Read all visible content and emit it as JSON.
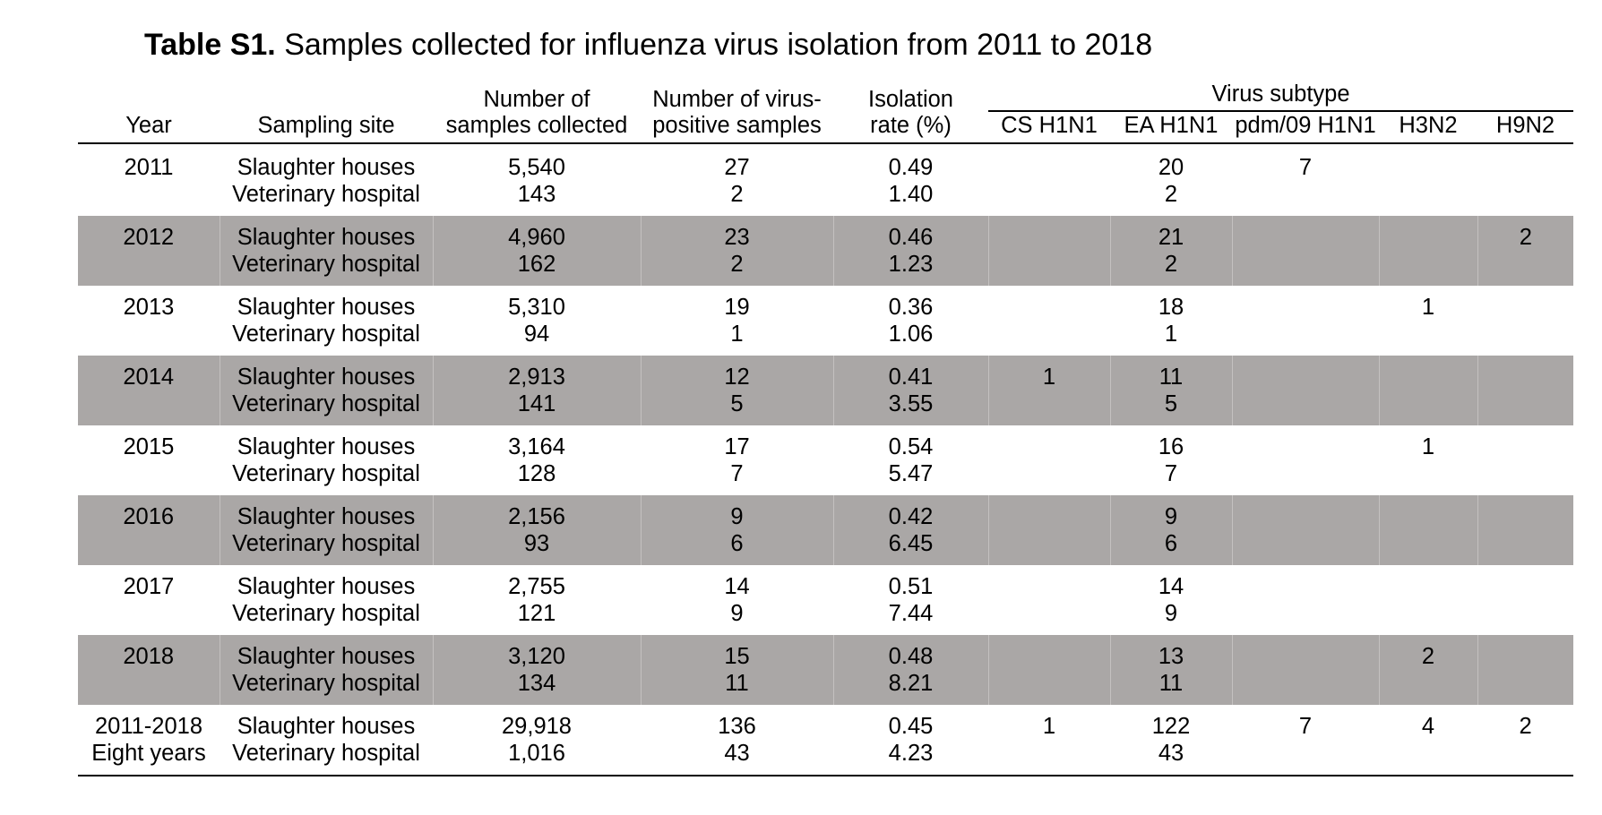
{
  "title": {
    "label": "Table S1.",
    "text": "Samples collected for influenza virus isolation from 2011 to 2018"
  },
  "headers": {
    "year": "Year",
    "site": "Sampling site",
    "num_line1": "Number of",
    "num_line2": "samples collected",
    "pos_line1": "Number of virus-",
    "pos_line2": "positive samples",
    "rate_line1": "Isolation",
    "rate_line2": "rate (%)",
    "subtype_group": "Virus subtype",
    "cs": "CS H1N1",
    "ea": "EA H1N1",
    "pdm": "pdm/09 H1N1",
    "h3": "H3N2",
    "h9": "H9N2"
  },
  "rows": [
    {
      "year": "2011",
      "year2": "",
      "sites": [
        "Slaughter houses",
        "Veterinary hospital"
      ],
      "num": [
        "5,540",
        "143"
      ],
      "pos": [
        "27",
        "2"
      ],
      "rate": [
        "0.49",
        "1.40"
      ],
      "cs": [
        "",
        ""
      ],
      "ea": [
        "20",
        "2"
      ],
      "pdm": [
        "7",
        ""
      ],
      "h3": [
        "",
        ""
      ],
      "h9": [
        "",
        ""
      ]
    },
    {
      "year": "2012",
      "year2": "",
      "sites": [
        "Slaughter houses",
        "Veterinary hospital"
      ],
      "num": [
        "4,960",
        "162"
      ],
      "pos": [
        "23",
        "2"
      ],
      "rate": [
        "0.46",
        "1.23"
      ],
      "cs": [
        "",
        ""
      ],
      "ea": [
        "21",
        "2"
      ],
      "pdm": [
        "",
        ""
      ],
      "h3": [
        "",
        ""
      ],
      "h9": [
        "2",
        ""
      ]
    },
    {
      "year": "2013",
      "year2": "",
      "sites": [
        "Slaughter houses",
        "Veterinary hospital"
      ],
      "num": [
        "5,310",
        "94"
      ],
      "pos": [
        "19",
        "1"
      ],
      "rate": [
        "0.36",
        "1.06"
      ],
      "cs": [
        "",
        ""
      ],
      "ea": [
        "18",
        "1"
      ],
      "pdm": [
        "",
        ""
      ],
      "h3": [
        "1",
        ""
      ],
      "h9": [
        "",
        ""
      ]
    },
    {
      "year": "2014",
      "year2": "",
      "sites": [
        "Slaughter houses",
        "Veterinary hospital"
      ],
      "num": [
        "2,913",
        "141"
      ],
      "pos": [
        "12",
        "5"
      ],
      "rate": [
        "0.41",
        "3.55"
      ],
      "cs": [
        "1",
        ""
      ],
      "ea": [
        "11",
        "5"
      ],
      "pdm": [
        "",
        ""
      ],
      "h3": [
        "",
        ""
      ],
      "h9": [
        "",
        ""
      ]
    },
    {
      "year": "2015",
      "year2": "",
      "sites": [
        "Slaughter houses",
        "Veterinary hospital"
      ],
      "num": [
        "3,164",
        "128"
      ],
      "pos": [
        "17",
        "7"
      ],
      "rate": [
        "0.54",
        "5.47"
      ],
      "cs": [
        "",
        ""
      ],
      "ea": [
        "16",
        "7"
      ],
      "pdm": [
        "",
        ""
      ],
      "h3": [
        "1",
        ""
      ],
      "h9": [
        "",
        ""
      ]
    },
    {
      "year": "2016",
      "year2": "",
      "sites": [
        "Slaughter houses",
        "Veterinary hospital"
      ],
      "num": [
        "2,156",
        "93"
      ],
      "pos": [
        "9",
        "6"
      ],
      "rate": [
        "0.42",
        "6.45"
      ],
      "cs": [
        "",
        ""
      ],
      "ea": [
        "9",
        "6"
      ],
      "pdm": [
        "",
        ""
      ],
      "h3": [
        "",
        ""
      ],
      "h9": [
        "",
        ""
      ]
    },
    {
      "year": "2017",
      "year2": "",
      "sites": [
        "Slaughter houses",
        "Veterinary hospital"
      ],
      "num": [
        "2,755",
        "121"
      ],
      "pos": [
        "14",
        "9"
      ],
      "rate": [
        "0.51",
        "7.44"
      ],
      "cs": [
        "",
        ""
      ],
      "ea": [
        "14",
        "9"
      ],
      "pdm": [
        "",
        ""
      ],
      "h3": [
        "",
        ""
      ],
      "h9": [
        "",
        ""
      ]
    },
    {
      "year": "2018",
      "year2": "",
      "sites": [
        "Slaughter houses",
        "Veterinary hospital"
      ],
      "num": [
        "3,120",
        "134"
      ],
      "pos": [
        "15",
        "11"
      ],
      "rate": [
        "0.48",
        "8.21"
      ],
      "cs": [
        "",
        ""
      ],
      "ea": [
        "13",
        "11"
      ],
      "pdm": [
        "",
        ""
      ],
      "h3": [
        "2",
        ""
      ],
      "h9": [
        "",
        ""
      ]
    },
    {
      "year": "2011-2018",
      "year2": "Eight years",
      "sites": [
        "Slaughter houses",
        "Veterinary hospital"
      ],
      "num": [
        "29,918",
        "1,016"
      ],
      "pos": [
        "136",
        "43"
      ],
      "rate": [
        "0.45",
        "4.23"
      ],
      "cs": [
        "1",
        ""
      ],
      "ea": [
        "122",
        "43"
      ],
      "pdm": [
        "7",
        ""
      ],
      "h3": [
        "4",
        ""
      ],
      "h9": [
        "2",
        ""
      ]
    }
  ],
  "colors": {
    "shade": "#aaa7a6",
    "rule": "#000000"
  }
}
